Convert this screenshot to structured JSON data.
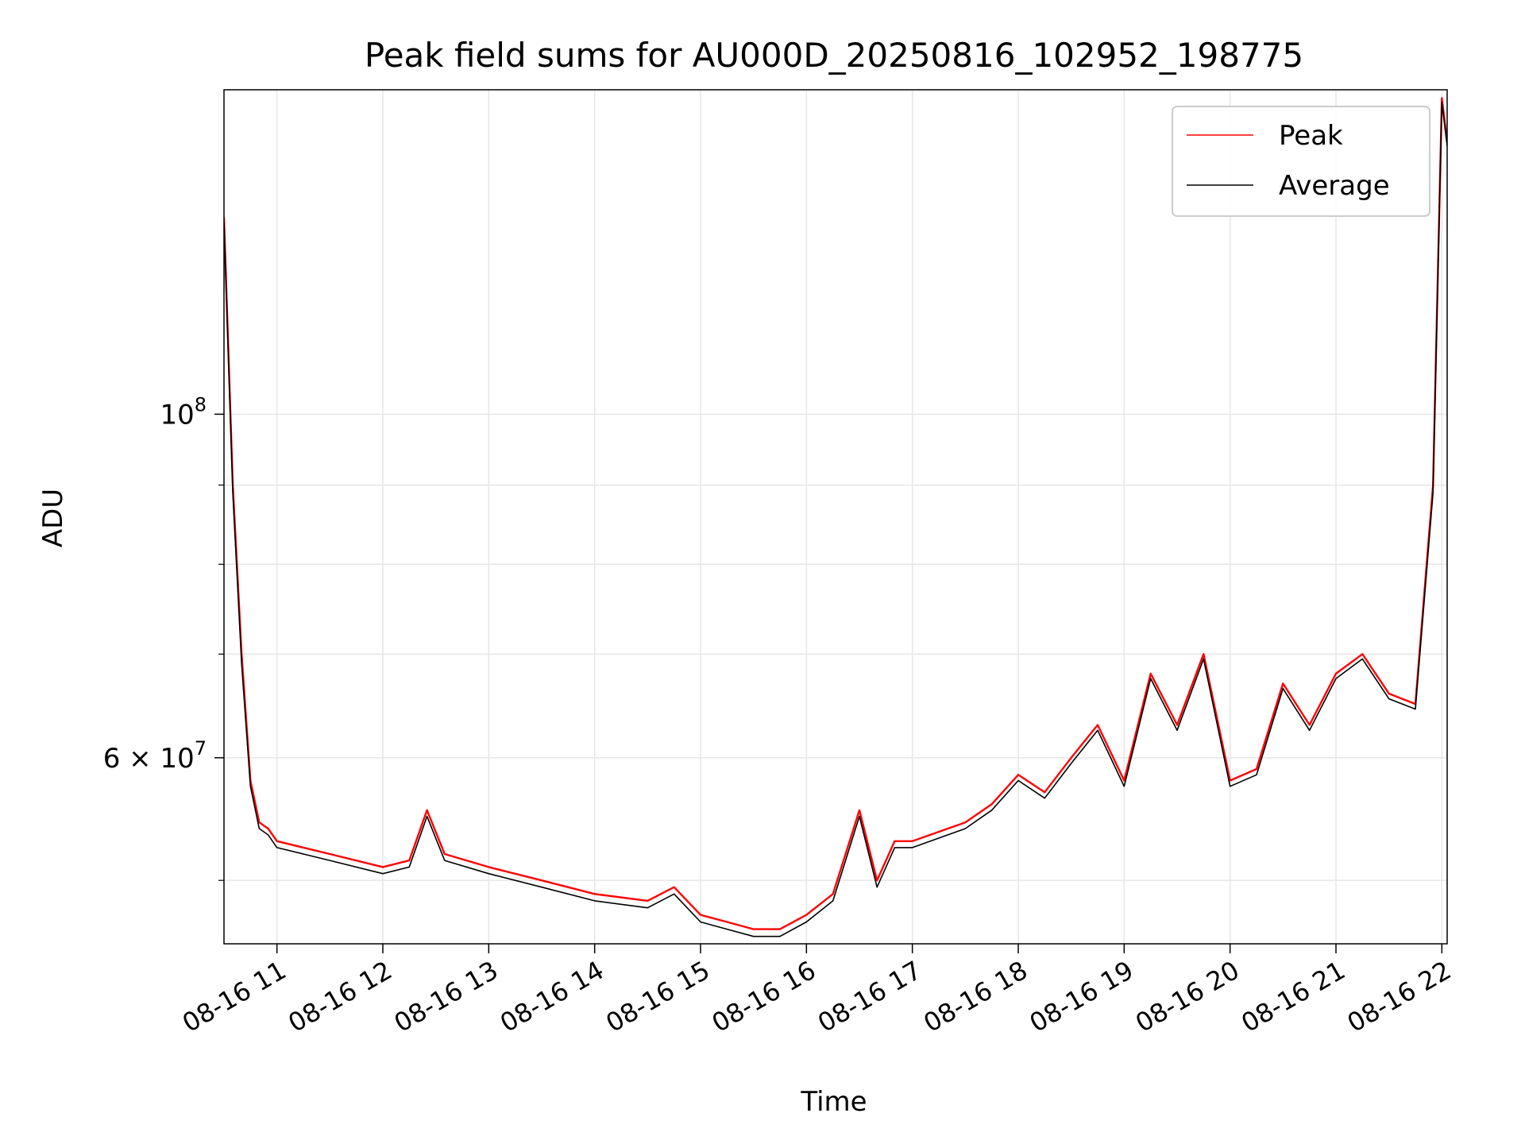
{
  "chart_data": {
    "type": "line",
    "title": "Peak field sums for AU000D_20250816_102952_198775",
    "xlabel": "Time",
    "ylabel": "ADU",
    "yscale": "log",
    "xlim": [
      "2025-08-16 10:30",
      "2025-08-16 22:03"
    ],
    "ylim": [
      45500000,
      162000000
    ],
    "grid": true,
    "legend_position": "top-right",
    "x_ticks": [
      {
        "value": "2025-08-16 11:00",
        "label": "08-16 11"
      },
      {
        "value": "2025-08-16 12:00",
        "label": "08-16 12"
      },
      {
        "value": "2025-08-16 13:00",
        "label": "08-16 13"
      },
      {
        "value": "2025-08-16 14:00",
        "label": "08-16 14"
      },
      {
        "value": "2025-08-16 15:00",
        "label": "08-16 15"
      },
      {
        "value": "2025-08-16 16:00",
        "label": "08-16 16"
      },
      {
        "value": "2025-08-16 17:00",
        "label": "08-16 17"
      },
      {
        "value": "2025-08-16 18:00",
        "label": "08-16 18"
      },
      {
        "value": "2025-08-16 19:00",
        "label": "08-16 19"
      },
      {
        "value": "2025-08-16 20:00",
        "label": "08-16 20"
      },
      {
        "value": "2025-08-16 21:00",
        "label": "08-16 21"
      },
      {
        "value": "2025-08-16 22:00",
        "label": "08-16 22"
      }
    ],
    "y_major_ticks": [
      {
        "value": 100000000,
        "base": "10",
        "exp": "8",
        "label": ""
      },
      {
        "value": 60000000,
        "base": "10",
        "exp": "7",
        "label": "6 × "
      }
    ],
    "y_minor_ticks": [
      50000000,
      70000000,
      80000000,
      90000000
    ],
    "series": [
      {
        "name": "Peak",
        "color": "#ff0000",
        "x": [
          "2025-08-16 10:30",
          "2025-08-16 10:35",
          "2025-08-16 10:40",
          "2025-08-16 10:45",
          "2025-08-16 10:50",
          "2025-08-16 10:55",
          "2025-08-16 11:00",
          "2025-08-16 11:15",
          "2025-08-16 11:30",
          "2025-08-16 12:00",
          "2025-08-16 12:15",
          "2025-08-16 12:25",
          "2025-08-16 12:35",
          "2025-08-16 13:00",
          "2025-08-16 13:30",
          "2025-08-16 14:00",
          "2025-08-16 14:30",
          "2025-08-16 14:45",
          "2025-08-16 15:00",
          "2025-08-16 15:15",
          "2025-08-16 15:30",
          "2025-08-16 15:45",
          "2025-08-16 16:00",
          "2025-08-16 16:15",
          "2025-08-16 16:30",
          "2025-08-16 16:40",
          "2025-08-16 16:50",
          "2025-08-16 17:00",
          "2025-08-16 17:30",
          "2025-08-16 17:45",
          "2025-08-16 18:00",
          "2025-08-16 18:15",
          "2025-08-16 18:30",
          "2025-08-16 18:45",
          "2025-08-16 19:00",
          "2025-08-16 19:15",
          "2025-08-16 19:30",
          "2025-08-16 19:45",
          "2025-08-16 20:00",
          "2025-08-16 20:15",
          "2025-08-16 20:30",
          "2025-08-16 20:45",
          "2025-08-16 21:00",
          "2025-08-16 21:15",
          "2025-08-16 21:30",
          "2025-08-16 21:45",
          "2025-08-16 21:55",
          "2025-08-16 22:00",
          "2025-08-16 22:03"
        ],
        "values": [
          134000000,
          90000000,
          70000000,
          58000000,
          54500000,
          54000000,
          53000000,
          52500000,
          52000000,
          51000000,
          51500000,
          55500000,
          52000000,
          51000000,
          50000000,
          49000000,
          48500000,
          49500000,
          47500000,
          47000000,
          46500000,
          46500000,
          47500000,
          49000000,
          55500000,
          50000000,
          53000000,
          53000000,
          54500000,
          56000000,
          58500000,
          57000000,
          60000000,
          63000000,
          58000000,
          68000000,
          63000000,
          70000000,
          58000000,
          59000000,
          67000000,
          63000000,
          68000000,
          70000000,
          66000000,
          65000000,
          90000000,
          160000000,
          150000000
        ]
      },
      {
        "name": "Average",
        "color": "#000000",
        "x": [
          "2025-08-16 10:30",
          "2025-08-16 10:35",
          "2025-08-16 10:40",
          "2025-08-16 10:45",
          "2025-08-16 10:50",
          "2025-08-16 10:55",
          "2025-08-16 11:00",
          "2025-08-16 11:15",
          "2025-08-16 11:30",
          "2025-08-16 12:00",
          "2025-08-16 12:15",
          "2025-08-16 12:25",
          "2025-08-16 12:35",
          "2025-08-16 13:00",
          "2025-08-16 13:30",
          "2025-08-16 14:00",
          "2025-08-16 14:30",
          "2025-08-16 14:45",
          "2025-08-16 15:00",
          "2025-08-16 15:15",
          "2025-08-16 15:30",
          "2025-08-16 15:45",
          "2025-08-16 16:00",
          "2025-08-16 16:15",
          "2025-08-16 16:30",
          "2025-08-16 16:40",
          "2025-08-16 16:50",
          "2025-08-16 17:00",
          "2025-08-16 17:30",
          "2025-08-16 17:45",
          "2025-08-16 18:00",
          "2025-08-16 18:15",
          "2025-08-16 18:30",
          "2025-08-16 18:45",
          "2025-08-16 19:00",
          "2025-08-16 19:15",
          "2025-08-16 19:30",
          "2025-08-16 19:45",
          "2025-08-16 20:00",
          "2025-08-16 20:15",
          "2025-08-16 20:30",
          "2025-08-16 20:45",
          "2025-08-16 21:00",
          "2025-08-16 21:15",
          "2025-08-16 21:30",
          "2025-08-16 21:45",
          "2025-08-16 21:55",
          "2025-08-16 22:00",
          "2025-08-16 22:03"
        ],
        "values": [
          133000000,
          89000000,
          69000000,
          57500000,
          54000000,
          53500000,
          52500000,
          52000000,
          51500000,
          50500000,
          51000000,
          55000000,
          51500000,
          50500000,
          49500000,
          48500000,
          48000000,
          49000000,
          47000000,
          46500000,
          46000000,
          46000000,
          47000000,
          48500000,
          55000000,
          49500000,
          52500000,
          52500000,
          54000000,
          55500000,
          58000000,
          56500000,
          59500000,
          62500000,
          57500000,
          67500000,
          62500000,
          69500000,
          57500000,
          58500000,
          66500000,
          62500000,
          67500000,
          69500000,
          65500000,
          64500000,
          89000000,
          159000000,
          149000000
        ]
      }
    ]
  }
}
